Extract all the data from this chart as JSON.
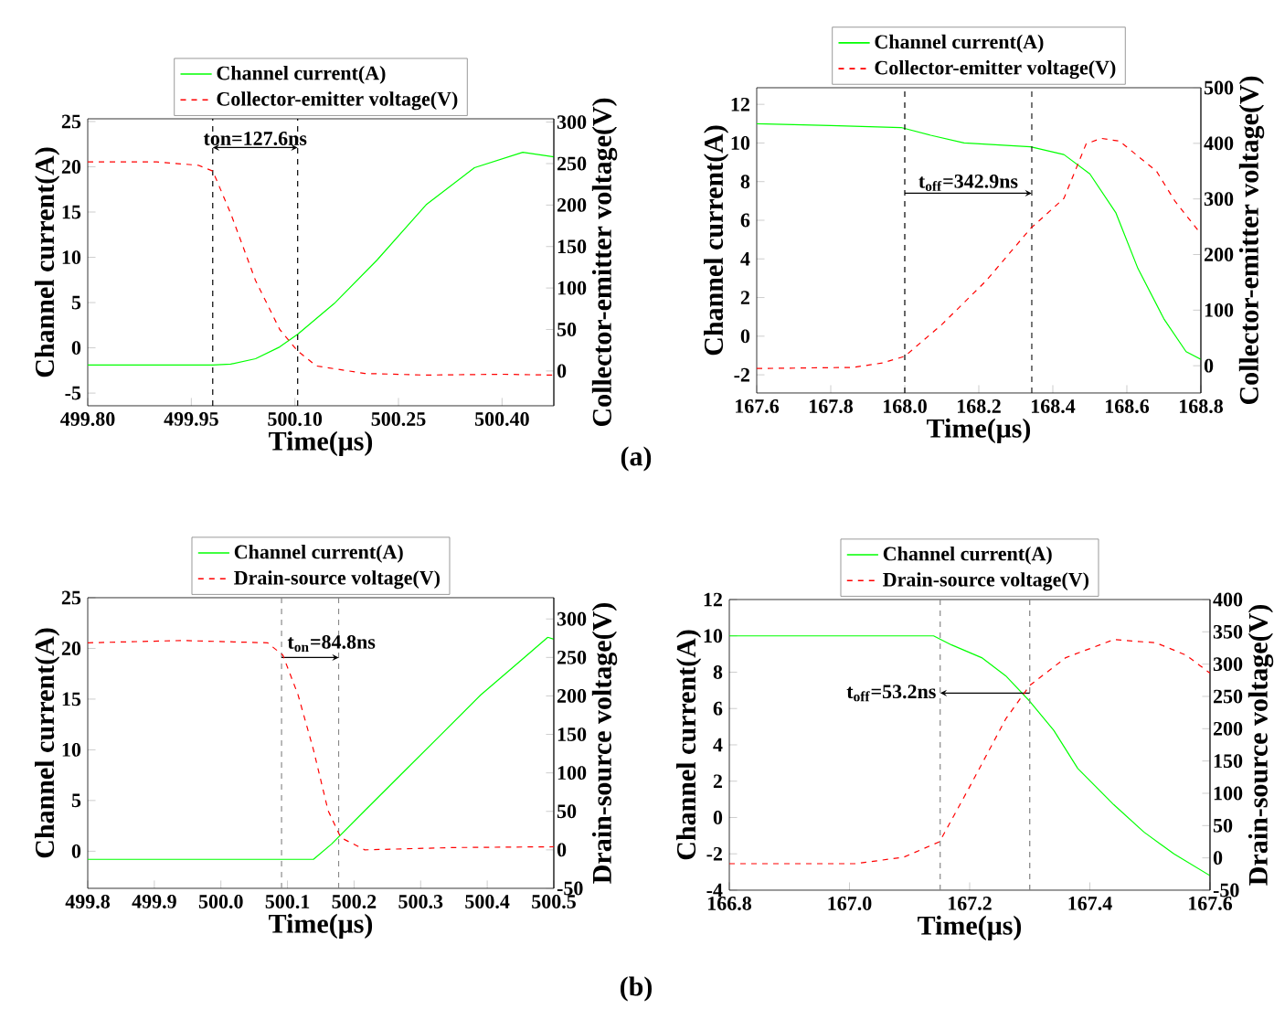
{
  "chart_data": [
    {
      "type": "line",
      "xlabel": "Time(μs)",
      "ylabel": "Channel current(A)",
      "y2label": "Collector-emitter voltage(V)",
      "legend": "top",
      "xlim": [
        499.8,
        500.475
      ],
      "xticks": [
        {
          "value": 499.8,
          "label": "499.80"
        },
        {
          "value": 499.95,
          "label": "499.95"
        },
        {
          "value": 500.1,
          "label": "500.10"
        },
        {
          "value": 500.25,
          "label": "500.25"
        },
        {
          "value": 500.4,
          "label": "500.40"
        }
      ],
      "ylim": [
        -6.4,
        25.3
      ],
      "yticks": [
        -5,
        0,
        5,
        10,
        15,
        20,
        25
      ],
      "y2lim": [
        -42,
        304
      ],
      "y2ticks": [
        0,
        50,
        100,
        150,
        200,
        250,
        300
      ],
      "series": [
        {
          "name": "Channel current(A)",
          "color": "#00ff00",
          "x": [
            499.8,
            499.9,
            499.981,
            500.007,
            500.043,
            500.078,
            500.104,
            500.157,
            500.219,
            500.29,
            500.36,
            500.43,
            500.475
          ],
          "values": [
            -1.9,
            -1.9,
            -1.9,
            -1.8,
            -1.2,
            0.1,
            1.5,
            4.9,
            9.7,
            15.8,
            19.9,
            21.6,
            21.1
          ]
        },
        {
          "name": "Collector-emitter voltage(V)",
          "color": "#ff0000",
          "axis": "y2",
          "line_style": "dashed",
          "x": [
            499.8,
            499.9,
            499.96,
            499.981,
            500.007,
            500.043,
            500.078,
            500.104,
            500.131,
            500.201,
            500.29,
            500.4,
            500.475
          ],
          "values": [
            252,
            252,
            248,
            241,
            190,
            109,
            50,
            24,
            6,
            -3,
            -5,
            -4,
            -5
          ]
        }
      ],
      "ref_lines": [
        {
          "axis": "x",
          "value": 499.981,
          "color": "#000000",
          "line_style": "dashed"
        },
        {
          "axis": "x",
          "value": 500.104,
          "color": "#000000",
          "line_style": "dashed"
        }
      ],
      "annotations": [
        "ton=127.6ns",
        "(a)"
      ]
    },
    {
      "type": "line",
      "xlabel": "Time(μs)",
      "ylabel": "Channel current(A)",
      "y2label": "Collector-emitter voltage(V)",
      "legend": "top",
      "xlim": [
        167.6,
        168.8
      ],
      "xticks": [
        167.6,
        167.8,
        {
          "value": 168.0,
          "label": "168.0"
        },
        168.2,
        168.4,
        168.6,
        168.8
      ],
      "ylim": [
        -2.94,
        12.86
      ],
      "yticks": [
        -2,
        0,
        2,
        4,
        6,
        8,
        10,
        12
      ],
      "y2lim": [
        -49,
        500
      ],
      "y2ticks": [
        0,
        100,
        200,
        300,
        400,
        500
      ],
      "series": [
        {
          "name": "Channel current(A)",
          "color": "#00ff00",
          "x": [
            167.6,
            167.8,
            167.99,
            168.07,
            168.16,
            168.34,
            168.43,
            168.5,
            168.57,
            168.63,
            168.7,
            168.76,
            168.8
          ],
          "values": [
            11.0,
            10.9,
            10.8,
            10.4,
            10.0,
            9.8,
            9.4,
            8.4,
            6.4,
            3.5,
            0.9,
            -0.8,
            -1.2
          ]
        },
        {
          "name": "Collector-emitter voltage(V)",
          "color": "#ff0000",
          "axis": "y2",
          "line_style": "dashed",
          "x": [
            167.6,
            167.86,
            167.94,
            168.0,
            168.1,
            168.22,
            168.34,
            168.43,
            168.49,
            168.53,
            168.58,
            168.68,
            168.73,
            168.8
          ],
          "values": [
            -5,
            -3,
            5,
            17,
            74,
            153,
            247,
            301,
            399,
            409,
            404,
            350,
            296,
            237
          ]
        }
      ],
      "ref_lines": [
        {
          "axis": "x",
          "value": 168.0,
          "color": "#000000",
          "line_style": "dashed"
        },
        {
          "axis": "x",
          "value": 168.343,
          "color": "#000000",
          "line_style": "dashed"
        }
      ],
      "annotations": [
        {
          "text": "t$_{off}$=342.9ns",
          "x": 168.343,
          "y": 7.4
        }
      ]
    },
    {
      "type": "line",
      "xlabel": "Time(μs)",
      "ylabel": "Channel current(A)",
      "y2label": "Drain-source voltage(V)",
      "legend": "top",
      "xlim": [
        499.8,
        500.5
      ],
      "xticks": [
        499.8,
        499.9,
        {
          "value": 500.0,
          "label": "500.0"
        },
        500.1,
        500.2,
        500.3,
        500.4,
        500.5
      ],
      "ylim": [
        -3.66,
        25
      ],
      "yticks": [
        0,
        5,
        10,
        15,
        20,
        25
      ],
      "y2lim": [
        -50,
        327.6
      ],
      "y2ticks": [
        -50,
        0,
        50,
        100,
        150,
        200,
        250,
        300
      ],
      "series": [
        {
          "name": "Channel current(A)",
          "color": "#00ff00",
          "x": [
            499.8,
            500.0,
            500.139,
            500.166,
            500.216,
            500.271,
            500.326,
            500.39,
            500.454,
            500.491,
            500.5
          ],
          "values": [
            -0.8,
            -0.8,
            -0.8,
            0.7,
            4.0,
            7.6,
            11.2,
            15.4,
            19.0,
            21.1,
            20.9
          ]
        },
        {
          "name": "Drain-source voltage(V)",
          "color": "#ff0000",
          "axis": "y2",
          "line_style": "dashed",
          "x": [
            499.8,
            499.942,
            500.07,
            500.093,
            500.116,
            500.139,
            500.161,
            500.18,
            500.216,
            500.35,
            500.5
          ],
          "values": [
            269,
            272,
            269,
            253,
            201,
            130,
            51,
            16,
            0,
            3,
            4
          ]
        }
      ],
      "ref_lines": [
        {
          "axis": "x",
          "value": 500.091,
          "color": "#808080",
          "line_style": "dashed"
        },
        {
          "axis": "x",
          "value": 500.177,
          "color": "#808080",
          "line_style": "dashed"
        }
      ],
      "annotations": [
        {
          "text": "t$_{on}$=84.8ns",
          "x": 500.177,
          "y": 19.1
        },
        "(b)"
      ]
    },
    {
      "type": "line",
      "xlabel": "Time(μs)",
      "ylabel": "Channel current(A)",
      "y2label": "Drain-source voltage(V)",
      "legend": "top",
      "xlim": [
        166.8,
        167.6
      ],
      "xticks": [
        166.8,
        {
          "value": 167.0,
          "label": "167.0"
        },
        167.2,
        167.4,
        167.6
      ],
      "ylim": [
        -4,
        12
      ],
      "yticks": [
        -4,
        -2,
        0,
        2,
        4,
        6,
        8,
        10,
        12
      ],
      "y2lim": [
        -50,
        400
      ],
      "y2ticks": [
        -50,
        0,
        50,
        100,
        150,
        200,
        250,
        300,
        350,
        400
      ],
      "series": [
        {
          "name": "Channel current(A)",
          "color": "#00ff00",
          "x": [
            166.8,
            167.0,
            167.14,
            167.17,
            167.22,
            167.26,
            167.3,
            167.34,
            167.38,
            167.44,
            167.49,
            167.54,
            167.6
          ],
          "values": [
            10.0,
            10.0,
            10.0,
            9.5,
            8.8,
            7.8,
            6.4,
            4.8,
            2.7,
            0.7,
            -0.8,
            -2.0,
            -3.2
          ]
        },
        {
          "name": "Drain-source voltage(V)",
          "color": "#ff0000",
          "axis": "y2",
          "line_style": "dashed",
          "x": [
            166.8,
            167.01,
            167.09,
            167.15,
            167.2,
            167.26,
            167.3,
            167.36,
            167.44,
            167.51,
            167.56,
            167.6
          ],
          "values": [
            -9,
            -9,
            1,
            25,
            110,
            215,
            267,
            310,
            338,
            333,
            314,
            286
          ]
        }
      ],
      "ref_lines": [
        {
          "axis": "x",
          "value": 167.151,
          "color": "#808080",
          "line_style": "dashed"
        },
        {
          "axis": "x",
          "value": 167.3,
          "color": "#808080",
          "line_style": "dashed"
        }
      ],
      "annotations": [
        {
          "text": "t$_{off}$=53.2ns",
          "x": 167.151,
          "y": 6.85
        }
      ]
    }
  ]
}
